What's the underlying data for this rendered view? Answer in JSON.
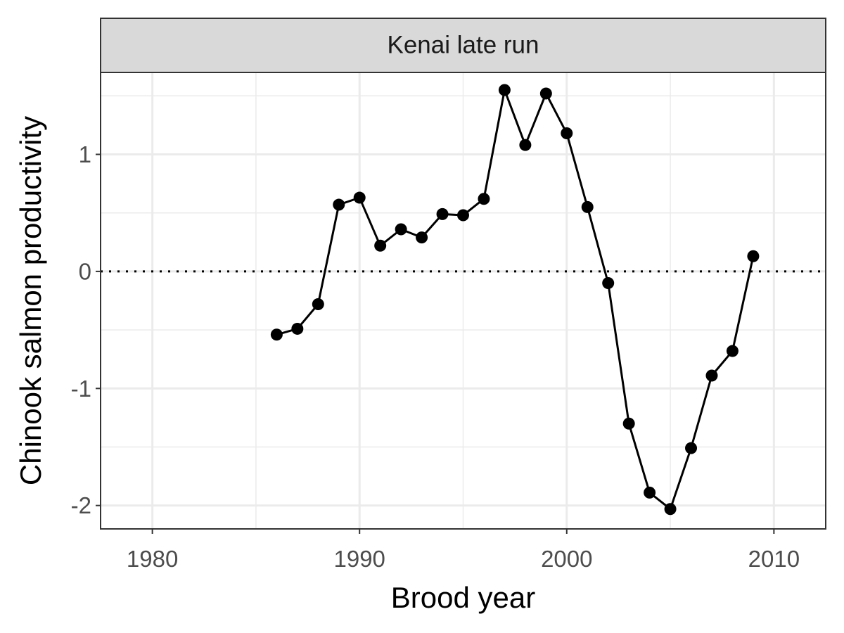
{
  "chart_data": {
    "type": "line",
    "panel_title": "Kenai late run",
    "xlabel": "Brood year",
    "ylabel": "Chinook salmon productivity",
    "xlim": [
      1977.5,
      2012.5
    ],
    "ylim": [
      -2.2,
      1.7
    ],
    "x_ticks": [
      1980,
      1990,
      2000,
      2010
    ],
    "x_tick_labels": [
      "1980",
      "1990",
      "2000",
      "2010"
    ],
    "y_ticks": [
      -2,
      -1,
      0,
      1
    ],
    "y_tick_labels": [
      "-2",
      "-1",
      "0",
      "1"
    ],
    "reference_line": {
      "y": 0,
      "style": "dotted"
    },
    "grid": true,
    "series": [
      {
        "x": [
          1986,
          1987,
          1988,
          1989,
          1990,
          1991,
          1992,
          1993,
          1994,
          1995,
          1996,
          1997,
          1998,
          1999,
          2000,
          2001,
          2002,
          2003,
          2004,
          2005,
          2006,
          2007,
          2008,
          2009
        ],
        "values": [
          -0.54,
          -0.49,
          -0.28,
          0.57,
          0.63,
          0.22,
          0.36,
          0.29,
          0.49,
          0.48,
          0.62,
          1.55,
          1.08,
          1.52,
          1.18,
          0.55,
          -0.1,
          -1.3,
          -1.89,
          -2.03,
          -1.51,
          -0.89,
          -0.68,
          0.13
        ]
      }
    ]
  }
}
